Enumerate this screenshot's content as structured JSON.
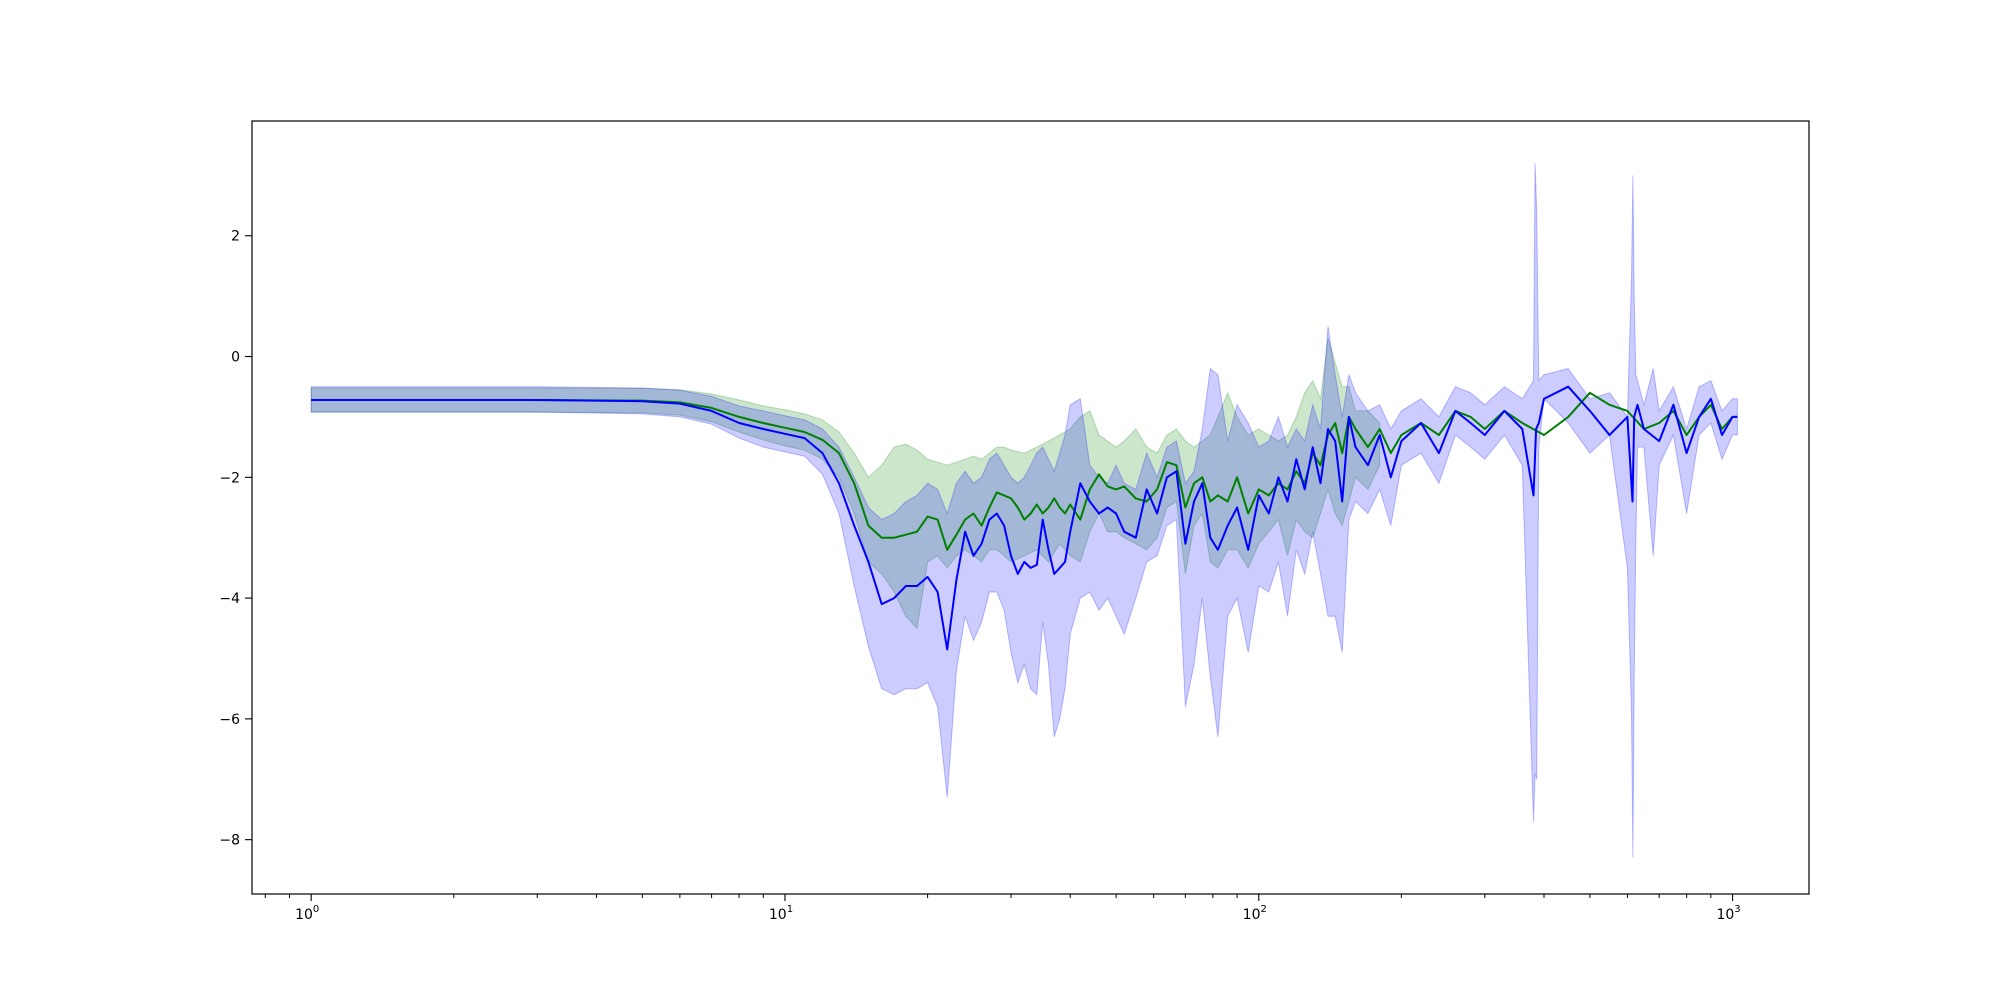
{
  "chart_data": {
    "type": "line",
    "title": "",
    "xlabel": "",
    "ylabel": "",
    "xscale": "log",
    "xlim": [
      0.75,
      1450
    ],
    "ylim": [
      -8.9,
      3.9
    ],
    "grid": false,
    "legend": "none",
    "x_ticks": [
      {
        "value": 1,
        "base": "10",
        "exp": "0"
      },
      {
        "value": 10,
        "base": "10",
        "exp": "1"
      },
      {
        "value": 100,
        "base": "10",
        "exp": "2"
      },
      {
        "value": 1000,
        "base": "10",
        "exp": "3"
      }
    ],
    "y_ticks": [
      {
        "value": 2,
        "label": "2"
      },
      {
        "value": 0,
        "label": "0"
      },
      {
        "value": -2,
        "label": "−2"
      },
      {
        "value": -4,
        "label": "−4"
      },
      {
        "value": -6,
        "label": "−6"
      },
      {
        "value": -8,
        "label": "−8"
      }
    ],
    "colors": {
      "green": "#008000",
      "blue": "#0000ff",
      "green_fill": "#008000",
      "blue_fill": "#0000ff",
      "overlap_fill": "#5a7dbf"
    },
    "series": [
      {
        "color": "green",
        "x": [
          1,
          3,
          5,
          6,
          7,
          8,
          9,
          10,
          11,
          12,
          13,
          14,
          15,
          16,
          17,
          18,
          19,
          20,
          21,
          22,
          23,
          24,
          25,
          26,
          27,
          28,
          29,
          30,
          31,
          32,
          33,
          34,
          35,
          36,
          37,
          38,
          39,
          40,
          42,
          44,
          46,
          48,
          50,
          52,
          55,
          58,
          61,
          64,
          67,
          70,
          73,
          76,
          79,
          82,
          86,
          90,
          95,
          100,
          105,
          110,
          115,
          120,
          125,
          130,
          135,
          140,
          145,
          150,
          155,
          160,
          170,
          180,
          190,
          200,
          220,
          240,
          260,
          280,
          300,
          330,
          360,
          400,
          450,
          500,
          550,
          600,
          650,
          700,
          750,
          800,
          850,
          900,
          950,
          1000,
          1024
        ],
        "y": [
          -0.72,
          -0.72,
          -0.73,
          -0.76,
          -0.85,
          -1.0,
          -1.1,
          -1.18,
          -1.25,
          -1.38,
          -1.6,
          -2.1,
          -2.8,
          -3.0,
          -3.0,
          -2.95,
          -2.9,
          -2.65,
          -2.7,
          -3.2,
          -2.95,
          -2.7,
          -2.6,
          -2.8,
          -2.5,
          -2.25,
          -2.3,
          -2.35,
          -2.5,
          -2.7,
          -2.6,
          -2.45,
          -2.6,
          -2.5,
          -2.35,
          -2.5,
          -2.6,
          -2.45,
          -2.7,
          -2.2,
          -1.95,
          -2.15,
          -2.2,
          -2.15,
          -2.35,
          -2.4,
          -2.2,
          -1.75,
          -1.8,
          -2.5,
          -2.1,
          -2.0,
          -2.4,
          -2.3,
          -2.4,
          -2.0,
          -2.6,
          -2.2,
          -2.3,
          -2.1,
          -2.2,
          -1.9,
          -2.1,
          -1.6,
          -1.8,
          -1.3,
          -1.1,
          -1.6,
          -1.0,
          -1.2,
          -1.5,
          -1.2,
          -1.6,
          -1.3,
          -1.1,
          -1.3,
          -0.9,
          -1.0,
          -1.2,
          -0.9,
          -1.1,
          -1.3,
          -1.0,
          -0.6,
          -0.8,
          -0.9,
          -1.2,
          -1.1,
          -0.9,
          -1.3,
          -1.0,
          -0.8,
          -1.2,
          -1.0,
          -1.0
        ]
      },
      {
        "color": "blue",
        "x": [
          1,
          3,
          5,
          6,
          7,
          8,
          9,
          10,
          11,
          12,
          13,
          14,
          15,
          16,
          17,
          18,
          19,
          20,
          21,
          22,
          23,
          24,
          25,
          26,
          27,
          28,
          29,
          30,
          31,
          32,
          33,
          34,
          35,
          36,
          37,
          38,
          39,
          40,
          42,
          44,
          46,
          48,
          50,
          52,
          55,
          58,
          61,
          64,
          67,
          70,
          73,
          76,
          79,
          82,
          86,
          90,
          95,
          100,
          105,
          110,
          115,
          120,
          125,
          130,
          135,
          140,
          145,
          150,
          155,
          160,
          170,
          180,
          190,
          200,
          220,
          240,
          260,
          280,
          300,
          330,
          360,
          380,
          385,
          390,
          400,
          450,
          500,
          550,
          600,
          615,
          620,
          630,
          650,
          700,
          750,
          800,
          850,
          900,
          950,
          1000,
          1024
        ],
        "y": [
          -0.72,
          -0.72,
          -0.74,
          -0.78,
          -0.9,
          -1.1,
          -1.2,
          -1.28,
          -1.35,
          -1.6,
          -2.1,
          -2.8,
          -3.4,
          -4.1,
          -4.0,
          -3.8,
          -3.8,
          -3.65,
          -3.9,
          -4.85,
          -3.7,
          -2.9,
          -3.3,
          -3.1,
          -2.7,
          -2.6,
          -2.8,
          -3.3,
          -3.6,
          -3.4,
          -3.5,
          -3.45,
          -2.7,
          -3.2,
          -3.6,
          -3.5,
          -3.4,
          -2.9,
          -2.1,
          -2.4,
          -2.6,
          -2.5,
          -2.6,
          -2.9,
          -3.0,
          -2.2,
          -2.6,
          -2.0,
          -1.9,
          -3.1,
          -2.4,
          -2.1,
          -3.0,
          -3.2,
          -2.8,
          -2.5,
          -3.2,
          -2.3,
          -2.6,
          -2.0,
          -2.4,
          -1.7,
          -2.2,
          -1.5,
          -2.1,
          -1.2,
          -1.4,
          -2.4,
          -1.0,
          -1.5,
          -1.8,
          -1.3,
          -2.0,
          -1.4,
          -1.1,
          -1.6,
          -0.9,
          -1.1,
          -1.3,
          -0.9,
          -1.2,
          -2.3,
          -1.2,
          -1.1,
          -0.7,
          -0.5,
          -0.9,
          -1.3,
          -1.0,
          -2.4,
          -1.0,
          -0.8,
          -1.2,
          -1.4,
          -0.8,
          -1.6,
          -1.0,
          -0.7,
          -1.3,
          -1.0,
          -1.0
        ]
      }
    ],
    "bands": [
      {
        "color": "green",
        "x": [
          1,
          3,
          5,
          6,
          7,
          8,
          9,
          10,
          11,
          12,
          13,
          14,
          15,
          16,
          17,
          18,
          19,
          20,
          21,
          22,
          23,
          24,
          25,
          26,
          27,
          28,
          29,
          30,
          32,
          34,
          36,
          38,
          40,
          42,
          44,
          46,
          48,
          50,
          52,
          55,
          58,
          61,
          64,
          67,
          70,
          73,
          76,
          79,
          82,
          86,
          90,
          95,
          100,
          105,
          110,
          115,
          120,
          125,
          130,
          135,
          140,
          145,
          150,
          155,
          160,
          170,
          180
        ],
        "upper": [
          -0.52,
          -0.52,
          -0.53,
          -0.55,
          -0.62,
          -0.72,
          -0.82,
          -0.88,
          -0.95,
          -1.05,
          -1.25,
          -1.6,
          -2.0,
          -1.8,
          -1.5,
          -1.45,
          -1.55,
          -1.7,
          -1.75,
          -1.8,
          -1.75,
          -1.7,
          -1.65,
          -1.7,
          -1.6,
          -1.5,
          -1.5,
          -1.55,
          -1.6,
          -1.5,
          -1.4,
          -1.3,
          -1.2,
          -1.0,
          -0.9,
          -1.3,
          -1.4,
          -1.5,
          -1.4,
          -1.2,
          -1.5,
          -1.6,
          -1.3,
          -1.2,
          -1.4,
          -1.5,
          -1.4,
          -1.3,
          -1.0,
          -0.6,
          -1.0,
          -1.3,
          -1.2,
          -1.3,
          -1.4,
          -1.3,
          -1.0,
          -0.6,
          -0.4,
          -0.7,
          0.3,
          -0.1,
          -0.5,
          -0.5,
          -0.9,
          -0.9,
          -1.1
        ],
        "lower": [
          -0.92,
          -0.92,
          -0.93,
          -0.97,
          -1.08,
          -1.25,
          -1.38,
          -1.48,
          -1.55,
          -1.7,
          -2.0,
          -2.6,
          -3.4,
          -3.6,
          -3.9,
          -4.3,
          -4.5,
          -3.4,
          -3.3,
          -3.5,
          -3.3,
          -3.2,
          -3.3,
          -3.4,
          -3.2,
          -3.2,
          -3.3,
          -3.4,
          -3.3,
          -3.2,
          -3.4,
          -3.1,
          -3.3,
          -3.4,
          -2.9,
          -2.6,
          -2.9,
          -2.9,
          -3.0,
          -3.1,
          -3.2,
          -3.0,
          -2.5,
          -2.4,
          -3.6,
          -2.8,
          -2.6,
          -3.4,
          -3.5,
          -3.2,
          -3.2,
          -3.5,
          -3.1,
          -2.9,
          -2.7,
          -3.3,
          -2.7,
          -2.9,
          -3.0,
          -2.6,
          -2.2,
          -2.6,
          -2.8,
          -2.4,
          -2.0,
          -2.2,
          -1.8
        ]
      },
      {
        "color": "blue",
        "x": [
          1,
          3,
          5,
          6,
          7,
          8,
          9,
          10,
          11,
          12,
          13,
          14,
          15,
          16,
          17,
          18,
          19,
          20,
          21,
          22,
          23,
          24,
          25,
          26,
          27,
          28,
          29,
          30,
          31,
          32,
          33,
          34,
          35,
          36,
          37,
          38,
          39,
          40,
          42,
          44,
          46,
          48,
          50,
          52,
          55,
          58,
          61,
          64,
          67,
          70,
          73,
          76,
          79,
          82,
          86,
          90,
          95,
          100,
          105,
          110,
          115,
          120,
          125,
          130,
          135,
          140,
          145,
          150,
          155,
          160,
          170,
          180,
          190,
          200,
          220,
          240,
          260,
          280,
          300,
          330,
          360,
          380,
          383,
          386,
          390,
          400,
          450,
          500,
          550,
          600,
          612,
          616,
          620,
          625,
          630,
          650,
          680,
          700,
          750,
          800,
          850,
          900,
          950,
          1000,
          1024
        ],
        "upper": [
          -0.5,
          -0.5,
          -0.52,
          -0.56,
          -0.66,
          -0.82,
          -0.9,
          -0.98,
          -1.05,
          -1.2,
          -1.5,
          -2.0,
          -2.5,
          -2.7,
          -2.6,
          -2.4,
          -2.3,
          -2.1,
          -2.2,
          -2.6,
          -2.1,
          -1.9,
          -2.1,
          -2.0,
          -1.7,
          -1.6,
          -1.8,
          -2.0,
          -2.1,
          -2.0,
          -1.8,
          -1.6,
          -1.5,
          -1.7,
          -1.9,
          -1.6,
          -1.3,
          -0.8,
          -0.7,
          -1.8,
          -2.0,
          -2.1,
          -1.8,
          -2.1,
          -2.2,
          -1.6,
          -2.0,
          -1.5,
          -1.4,
          -2.1,
          -1.9,
          -1.2,
          -0.2,
          -0.3,
          -1.4,
          -0.8,
          -1.1,
          -1.5,
          -1.4,
          -1.0,
          -1.5,
          -1.2,
          -1.4,
          -0.8,
          -1.2,
          0.5,
          -0.3,
          -1.0,
          -0.3,
          -0.6,
          -0.9,
          -0.8,
          -1.2,
          -0.9,
          -0.7,
          -1.0,
          -0.5,
          -0.6,
          -0.8,
          -0.5,
          -0.7,
          -0.4,
          3.2,
          2.4,
          -0.4,
          -0.3,
          -0.2,
          -0.7,
          -0.6,
          -1.0,
          1.3,
          3.0,
          1.0,
          -0.3,
          -0.4,
          -0.8,
          -0.2,
          -0.9,
          -0.5,
          -1.2,
          -0.5,
          -0.4,
          -0.9,
          -0.7,
          -0.7
        ],
        "lower": [
          -0.92,
          -0.92,
          -0.95,
          -1.0,
          -1.12,
          -1.35,
          -1.5,
          -1.58,
          -1.65,
          -1.95,
          -2.6,
          -3.8,
          -4.8,
          -5.5,
          -5.6,
          -5.5,
          -5.5,
          -5.4,
          -5.8,
          -7.3,
          -5.2,
          -4.3,
          -4.7,
          -4.4,
          -3.9,
          -3.9,
          -4.2,
          -4.9,
          -5.4,
          -5.1,
          -5.5,
          -5.6,
          -4.4,
          -5.1,
          -6.3,
          -6.0,
          -5.5,
          -4.6,
          -4.0,
          -3.9,
          -4.2,
          -4.0,
          -4.3,
          -4.6,
          -4.0,
          -3.4,
          -3.3,
          -2.8,
          -2.7,
          -5.8,
          -5.1,
          -4.0,
          -5.3,
          -6.3,
          -4.3,
          -4.0,
          -4.9,
          -3.8,
          -3.9,
          -3.4,
          -4.3,
          -3.2,
          -3.6,
          -2.9,
          -3.6,
          -4.3,
          -4.3,
          -4.9,
          -2.7,
          -2.4,
          -2.6,
          -2.2,
          -2.8,
          -1.8,
          -1.6,
          -2.1,
          -1.3,
          -1.5,
          -1.7,
          -1.3,
          -1.8,
          -7.7,
          -6.9,
          -7.0,
          -1.5,
          -0.7,
          -1.1,
          -1.6,
          -1.3,
          -3.5,
          -5.9,
          -8.3,
          -5.3,
          -3.1,
          -1.5,
          -1.5,
          -3.3,
          -1.8,
          -1.3,
          -2.6,
          -1.3,
          -1.1,
          -1.7,
          -1.3,
          -1.3
        ]
      }
    ]
  }
}
